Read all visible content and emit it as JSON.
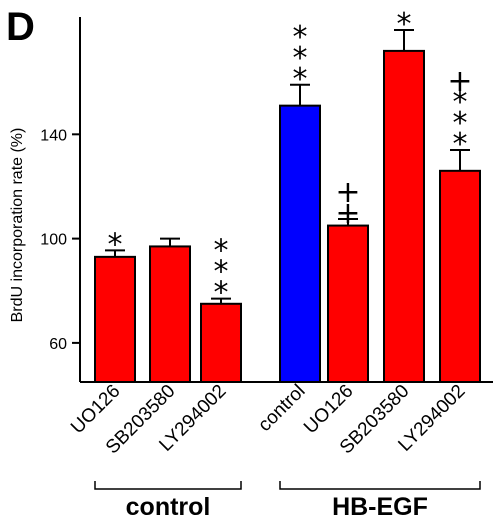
{
  "panel_letter": "D",
  "chart_data": {
    "type": "bar",
    "ylabel": "BrdU incorporation rate (%)",
    "ylim": [
      45,
      185
    ],
    "yticks": [
      60,
      100,
      140
    ],
    "grid": false,
    "categories": [
      "UO126",
      "SB203580",
      "LY294002",
      "control",
      "UO126",
      "SB203580",
      "LY294002"
    ],
    "groups": [
      {
        "label": "control",
        "start": 0,
        "end": 2
      },
      {
        "label": "HB-EGF",
        "start": 3,
        "end": 6
      }
    ],
    "values": [
      93,
      97,
      75,
      151,
      105,
      172,
      126
    ],
    "errors": [
      2.5,
      3,
      2,
      8,
      2.5,
      8,
      8
    ],
    "colors": [
      "#ff0000",
      "#ff0000",
      "#ff0000",
      "#0000ff",
      "#ff0000",
      "#ff0000",
      "#ff0000"
    ],
    "annotations": [
      [
        "*"
      ],
      [],
      [
        "*",
        "*",
        "*"
      ],
      [
        "*",
        "*",
        "*"
      ],
      [
        "+",
        "+"
      ],
      [
        "*"
      ],
      [
        "+",
        "*",
        "*",
        "*"
      ]
    ]
  }
}
